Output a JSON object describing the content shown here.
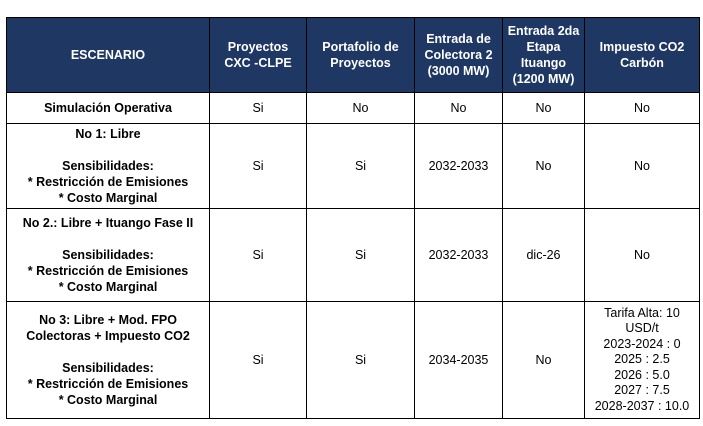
{
  "headers": [
    "ESCENARIO",
    "Proyectos CXC -CLPE",
    "Portafolio de Proyectos",
    "Entrada de Colectora 2 (3000 MW)",
    "Entrada 2da Etapa Ituango (1200 MW)",
    "Impuesto CO2 Carbón"
  ],
  "header_color": "#1f3763",
  "rows": [
    {
      "scenario": [
        "Simulación Operativa"
      ],
      "cells": [
        "Si",
        "No",
        "No",
        "No",
        "No"
      ]
    },
    {
      "scenario": [
        "No 1: Libre",
        "",
        "Sensibilidades:",
        "* Restricción de Emisiones",
        "* Costo Marginal"
      ],
      "cells": [
        "Si",
        "Si",
        "2032-2033",
        "No",
        "No"
      ]
    },
    {
      "scenario": [
        "No 2.: Libre + Ituango Fase II",
        "",
        "Sensibilidades:",
        "* Restricción de Emisiones",
        "* Costo Marginal"
      ],
      "cells": [
        "Si",
        "Si",
        "2032-2033",
        "dic-26",
        "No"
      ]
    },
    {
      "scenario": [
        "No 3: Libre + Mod. FPO Colectoras + Impuesto CO2",
        "",
        "Sensibilidades:",
        "* Restricción de Emisiones",
        "* Costo Marginal"
      ],
      "cells": [
        "Si",
        "Si",
        "2034-2035",
        "No"
      ],
      "co2_lines": [
        "Tarifa Alta: 10 USD/t",
        "2023-2024 : 0",
        "2025 : 2.5",
        "2026 : 5.0",
        "2027 : 7.5",
        "2028-2037 : 10.0"
      ]
    }
  ]
}
